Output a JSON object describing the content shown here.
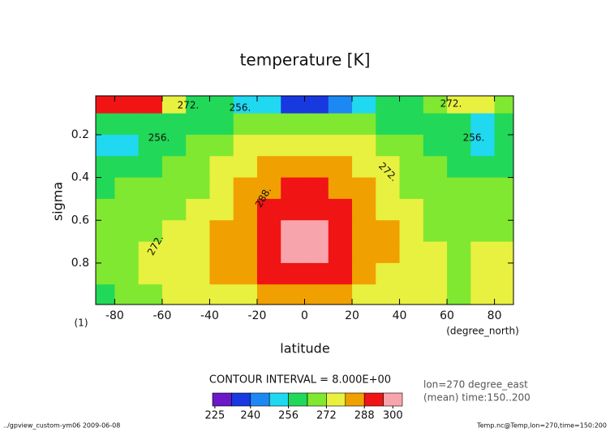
{
  "chart_data": {
    "type": "contour",
    "title": "temperature [K]",
    "x_label": "latitude",
    "x_unit": "(degree_north)",
    "y_label": "sigma",
    "y_unit": "(1)",
    "contour_interval": "CONTOUR INTERVAL = 8.000E+00",
    "info": [
      "lon=270 degree_east",
      "(mean) time:150..200"
    ],
    "footer_left": "../gpview_custom-ym06  2009-06-08",
    "footer_right": "Temp.nc@Temp,lon=270,time=150:200",
    "xlim": [
      -88,
      88
    ],
    "xticks": [
      -80,
      -60,
      -40,
      -20,
      0,
      20,
      40,
      60,
      80
    ],
    "ylim": [
      0.018,
      0.994
    ],
    "yticks": [
      0.2,
      0.4,
      0.6,
      0.8
    ],
    "x": [
      -85,
      -75,
      -65,
      -55,
      -45,
      -35,
      -25,
      -15,
      -5,
      5,
      15,
      25,
      35,
      45,
      55,
      65,
      75,
      85
    ],
    "y": [
      0.05,
      0.15,
      0.25,
      0.35,
      0.45,
      0.55,
      0.65,
      0.75,
      0.85,
      0.95
    ],
    "z": [
      [
        290,
        290,
        288,
        275,
        262,
        258,
        254,
        248,
        235,
        235,
        245,
        252,
        256,
        262,
        270,
        275,
        275,
        270
      ],
      [
        262,
        260,
        256,
        258,
        260,
        262,
        264,
        265,
        266,
        266,
        265,
        264,
        262,
        260,
        258,
        256,
        255,
        258
      ],
      [
        252,
        254,
        258,
        262,
        265,
        268,
        272,
        274,
        275,
        275,
        274,
        272,
        268,
        264,
        260,
        256,
        254,
        256
      ],
      [
        258,
        260,
        263,
        266,
        269,
        273,
        278,
        280,
        281,
        281,
        280,
        278,
        273,
        268,
        264,
        262,
        261,
        262
      ],
      [
        262,
        264,
        266,
        268,
        271,
        276,
        281,
        286,
        288,
        288,
        286,
        282,
        276,
        270,
        267,
        265,
        264,
        265
      ],
      [
        265,
        266,
        268,
        271,
        274,
        278,
        283,
        289,
        293,
        293,
        290,
        284,
        278,
        272,
        269,
        267,
        267,
        267
      ],
      [
        266,
        268,
        270,
        273,
        276,
        280,
        285,
        291,
        298,
        298,
        292,
        286,
        280,
        274,
        271,
        269,
        270,
        271
      ],
      [
        267,
        270,
        272,
        275,
        278,
        282,
        286,
        293,
        299,
        299,
        293,
        287,
        280,
        275,
        273,
        271,
        273,
        274
      ],
      [
        266,
        269,
        272,
        274,
        277,
        280,
        284,
        289,
        291,
        291,
        289,
        284,
        279,
        275,
        273,
        270,
        274,
        276
      ],
      [
        260,
        266,
        270,
        273,
        275,
        277,
        279,
        281,
        282,
        282,
        281,
        279,
        277,
        274,
        272,
        270,
        272,
        273
      ]
    ],
    "levels": [
      224,
      232,
      240,
      248,
      256,
      264,
      272,
      280,
      288,
      296,
      304
    ],
    "colors": [
      "#6a18c8",
      "#1838e0",
      "#1c88f4",
      "#20d8f0",
      "#22d858",
      "#80e830",
      "#e8f040",
      "#f0a000",
      "#f01414",
      "#f8a4ac"
    ],
    "colorbar_ticks": [
      225,
      240,
      256,
      272,
      288,
      300
    ],
    "contour_labels": [
      "272.",
      "256.",
      "272.",
      "256.",
      "256.",
      "272.",
      "288.",
      "272."
    ]
  }
}
